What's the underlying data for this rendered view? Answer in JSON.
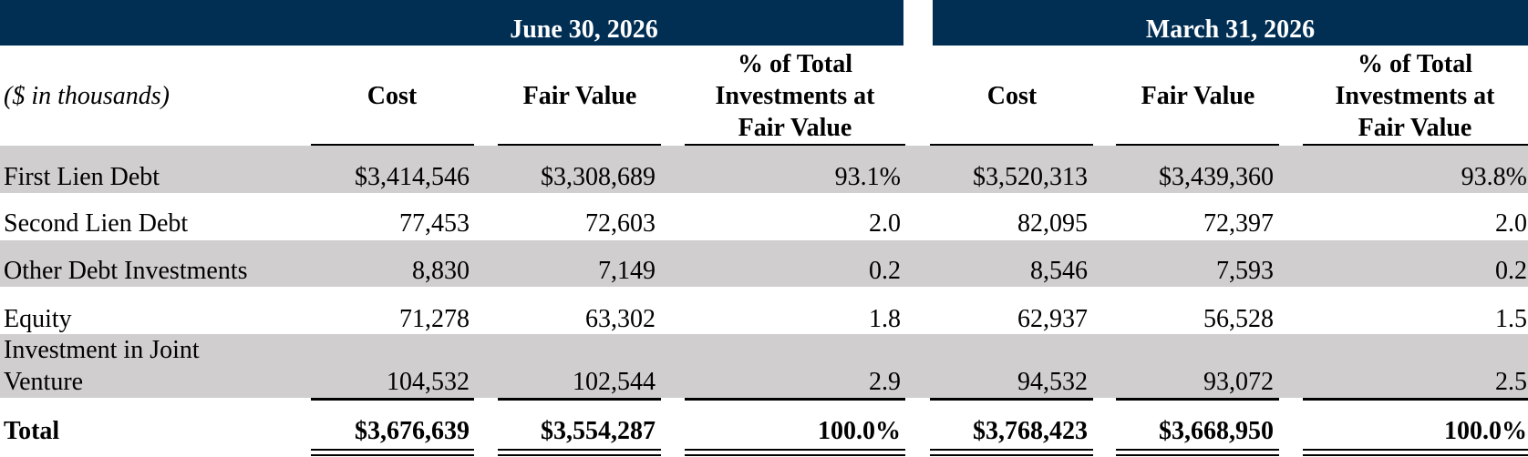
{
  "periods": [
    {
      "label": "June 30, 2026"
    },
    {
      "label": "March 31, 2026"
    }
  ],
  "units_label": "($ in thousands)",
  "columns": {
    "cost": "Cost",
    "fair_value": "Fair Value",
    "pct_line1": "% of Total",
    "pct_line2": "Investments at",
    "pct_line3": "Fair Value"
  },
  "rows": [
    {
      "label": "First Lien Debt",
      "label2": "",
      "jun_cost": "$3,414,546",
      "jun_fv": "$3,308,689",
      "jun_pct": "93.1%",
      "mar_cost": "$3,520,313",
      "mar_fv": "$3,439,360",
      "mar_pct": "93.8%"
    },
    {
      "label": "Second Lien Debt",
      "label2": "",
      "jun_cost": "77,453",
      "jun_fv": "72,603",
      "jun_pct": "2.0",
      "mar_cost": "82,095",
      "mar_fv": "72,397",
      "mar_pct": "2.0"
    },
    {
      "label": "Other Debt Investments",
      "label2": "",
      "jun_cost": "8,830",
      "jun_fv": "7,149",
      "jun_pct": "0.2",
      "mar_cost": "8,546",
      "mar_fv": "7,593",
      "mar_pct": "0.2"
    },
    {
      "label": "Equity",
      "label2": "",
      "jun_cost": "71,278",
      "jun_fv": "63,302",
      "jun_pct": "1.8",
      "mar_cost": "62,937",
      "mar_fv": "56,528",
      "mar_pct": "1.5"
    },
    {
      "label": "Investment in Joint",
      "label2": "Venture",
      "jun_cost": "104,532",
      "jun_fv": "102,544",
      "jun_pct": "2.9",
      "mar_cost": "94,532",
      "mar_fv": "93,072",
      "mar_pct": "2.5"
    }
  ],
  "total": {
    "label": "Total",
    "jun_cost": "$3,676,639",
    "jun_fv": "$3,554,287",
    "jun_pct": "100.0%",
    "mar_cost": "$3,768,423",
    "mar_fv": "$3,668,950",
    "mar_pct": "100.0%"
  },
  "colors": {
    "header_bg": "#012f54",
    "band": "#d0cecf"
  }
}
